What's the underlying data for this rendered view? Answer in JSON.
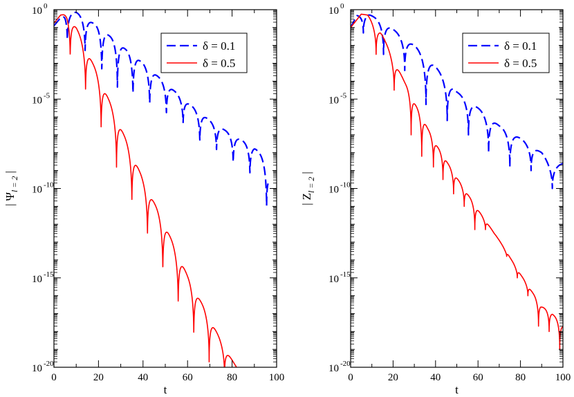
{
  "colors": {
    "series_blue": "#0000ff",
    "series_red": "#ff0000",
    "axis": "#000000"
  },
  "chart_data": [
    {
      "type": "line",
      "panel": "left",
      "title": "",
      "xlabel": "t",
      "ylabel": "| Ψ l = 2 |",
      "ylabel_parts": {
        "bar_left": "|",
        "symbol": "Ψ",
        "subscript": "l = 2",
        "bar_right": "|"
      },
      "xlim": [
        0,
        100
      ],
      "ylim_log10": [
        -20,
        0
      ],
      "x_ticks": [
        "0",
        "20",
        "40",
        "60",
        "80",
        "100"
      ],
      "y_ticks": [
        {
          "base": "10",
          "exp": "0"
        },
        {
          "base": "10",
          "exp": "-5"
        },
        {
          "base": "10",
          "exp": "-10"
        },
        {
          "base": "10",
          "exp": "-15"
        },
        {
          "base": "10",
          "exp": "-20"
        }
      ],
      "legend_position": "top-right",
      "series": [
        {
          "name": "δ = 0.1",
          "color": "#0000ff",
          "style": "dashed",
          "log10_envelope": [
            [
              0,
              -0.9
            ],
            [
              5,
              -0.15
            ],
            [
              10,
              -0.15
            ],
            [
              20,
              -0.95
            ],
            [
              30,
              -2.0
            ],
            [
              40,
              -3.0
            ],
            [
              50,
              -4.1
            ],
            [
              60,
              -5.2
            ],
            [
              70,
              -6.2
            ],
            [
              80,
              -7.0
            ],
            [
              90,
              -7.7
            ],
            [
              95,
              -8.4
            ],
            [
              97,
              -9.6
            ]
          ],
          "dip_times": [
            6,
            14,
            21.5,
            28.5,
            35.5,
            43,
            50.5,
            58,
            65.5,
            73,
            80.5,
            88,
            95.5
          ],
          "log10_dip_depths": [
            -1.8,
            -2.5,
            -3.6,
            -4.5,
            -5.0,
            -5.5,
            -6.0,
            -6.5,
            -7.5,
            -8.0,
            -8.7,
            -9.3,
            -11.2
          ]
        },
        {
          "name": "δ = 0.5",
          "color": "#ff0000",
          "style": "solid",
          "log10_envelope": [
            [
              0,
              -0.75
            ],
            [
              3,
              -0.3
            ],
            [
              6,
              -0.25
            ],
            [
              10,
              -1.0
            ],
            [
              20,
              -3.7
            ],
            [
              30,
              -6.6
            ],
            [
              40,
              -9.5
            ],
            [
              50,
              -12.1
            ],
            [
              60,
              -14.9
            ],
            [
              70,
              -17.3
            ],
            [
              77,
              -19.0
            ],
            [
              82,
              -20.0
            ]
          ],
          "dip_times": [
            7.3,
            14.2,
            21.2,
            28.1,
            35.0,
            42.0,
            48.9,
            55.8,
            62.8,
            69.7,
            76.6
          ],
          "log10_dip_depths": [
            -2.8,
            -4.7,
            -6.8,
            -8.9,
            -10.9,
            -12.8,
            -14.8,
            -16.6,
            -18.3,
            -19.7,
            -20.5
          ]
        }
      ]
    },
    {
      "type": "line",
      "panel": "right",
      "title": "",
      "xlabel": "t",
      "ylabel": "| Z l = 2 |",
      "ylabel_parts": {
        "bar_left": "|",
        "symbol": "Z",
        "subscript": "l = 2",
        "bar_right": "|"
      },
      "xlim": [
        0,
        100
      ],
      "ylim_log10": [
        -20,
        0
      ],
      "x_ticks": [
        "0",
        "20",
        "40",
        "60",
        "80",
        "100"
      ],
      "y_ticks": [
        {
          "base": "10",
          "exp": "0"
        },
        {
          "base": "10",
          "exp": "-5"
        },
        {
          "base": "10",
          "exp": "-10"
        },
        {
          "base": "10",
          "exp": "-15"
        },
        {
          "base": "10",
          "exp": "-20"
        }
      ],
      "legend_position": "top-right",
      "series": [
        {
          "name": "δ = 0.1",
          "color": "#0000ff",
          "style": "dashed",
          "log10_envelope": [
            [
              0,
              -1.0
            ],
            [
              3,
              -0.3
            ],
            [
              8,
              -0.2
            ],
            [
              15,
              -0.7
            ],
            [
              20,
              -1.1
            ],
            [
              30,
              -2.0
            ],
            [
              40,
              -3.2
            ],
            [
              50,
              -4.6
            ],
            [
              60,
              -5.5
            ],
            [
              70,
              -6.5
            ],
            [
              80,
              -7.2
            ],
            [
              90,
              -8.0
            ],
            [
              95,
              -8.8
            ],
            [
              100,
              -8.6
            ]
          ],
          "dip_times": [
            6,
            15.5,
            25.5,
            35.5,
            45.5,
            55.5,
            65,
            75,
            85,
            95
          ],
          "log10_dip_depths": [
            -1.3,
            -2.5,
            -3.4,
            -5.3,
            -6.2,
            -7.0,
            -8.0,
            -8.8,
            -9.0,
            -10.0
          ]
        },
        {
          "name": "δ = 0.5",
          "color": "#ff0000",
          "style": "solid",
          "log10_envelope": [
            [
              0,
              -1.0
            ],
            [
              5,
              -0.25
            ],
            [
              8,
              -0.3
            ],
            [
              14,
              -1.2
            ],
            [
              20,
              -2.7
            ],
            [
              30,
              -5.2
            ],
            [
              40,
              -7.5
            ],
            [
              50,
              -9.4
            ],
            [
              60,
              -11.2
            ],
            [
              70,
              -12.9
            ],
            [
              80,
              -14.8
            ],
            [
              90,
              -16.6
            ],
            [
              95,
              -17.0
            ],
            [
              100,
              -17.7
            ]
          ],
          "dip_times": [
            12,
            20.5,
            28.5,
            33.5,
            39,
            43.5,
            48.5,
            53.5,
            58.5,
            63.5,
            68.5,
            73.5,
            78.5,
            83.5,
            88.5,
            93.5,
            98.5
          ],
          "log10_dip_depths": [
            -2.5,
            -4.5,
            -7.0,
            -8.2,
            -8.8,
            -9.5,
            -10.3,
            -11.0,
            -12.3,
            -12.3,
            -12.6,
            -13.8,
            -15.0,
            -16.0,
            -17.7,
            -18.0,
            -19.0
          ]
        }
      ]
    }
  ]
}
